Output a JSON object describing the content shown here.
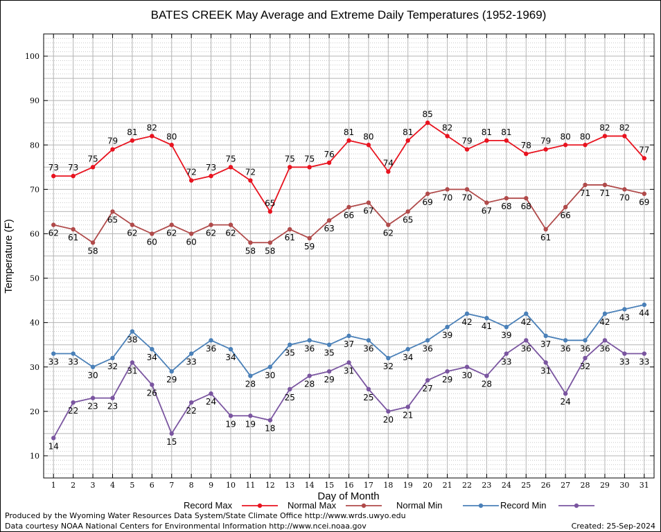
{
  "chart_data": {
    "type": "line",
    "title": "BATES CREEK May Average and Extreme Daily Temperatures (1952-1969)",
    "xlabel": "Day of Month",
    "ylabel": "Temperature (F)",
    "xlim": [
      0.5,
      31.5
    ],
    "ylim": [
      5,
      105
    ],
    "yticks": [
      10,
      20,
      30,
      40,
      50,
      60,
      70,
      80,
      90,
      100
    ],
    "x": [
      1,
      2,
      3,
      4,
      5,
      6,
      7,
      8,
      9,
      10,
      11,
      12,
      13,
      14,
      15,
      16,
      17,
      18,
      19,
      20,
      21,
      22,
      23,
      24,
      25,
      26,
      27,
      28,
      29,
      30,
      31
    ],
    "grid": true,
    "legend_position": "bottom",
    "series": [
      {
        "name": "Record Max",
        "color": "#e8131f",
        "values": [
          73,
          73,
          75,
          79,
          81,
          82,
          80,
          72,
          73,
          75,
          72,
          65,
          75,
          75,
          76,
          81,
          80,
          74,
          81,
          85,
          82,
          79,
          81,
          81,
          78,
          79,
          80,
          80,
          82,
          82,
          77
        ]
      },
      {
        "name": "Normal Max",
        "color": "#b04a4a",
        "values": [
          62,
          61,
          58,
          65,
          62,
          60,
          62,
          60,
          62,
          62,
          58,
          58,
          61,
          59,
          63,
          66,
          67,
          62,
          65,
          69,
          70,
          70,
          67,
          68,
          68,
          61,
          66,
          71,
          71,
          70,
          69
        ]
      },
      {
        "name": "Normal Min",
        "color": "#4a80b8",
        "values": [
          33,
          33,
          30,
          32,
          38,
          34,
          29,
          33,
          36,
          34,
          28,
          30,
          35,
          36,
          35,
          37,
          36,
          32,
          34,
          36,
          39,
          42,
          41,
          39,
          42,
          37,
          36,
          36,
          42,
          43,
          44
        ]
      },
      {
        "name": "Record Min",
        "color": "#7a55a0",
        "values": [
          14,
          22,
          23,
          23,
          31,
          26,
          15,
          22,
          24,
          19,
          19,
          18,
          25,
          28,
          29,
          31,
          25,
          20,
          21,
          27,
          29,
          30,
          28,
          33,
          36,
          31,
          24,
          32,
          36,
          33,
          33
        ]
      }
    ]
  },
  "footer": {
    "produced_by": "Produced by the Wyoming Water Resources Data System/State Climate Office http://www.wrds.uwyo.edu",
    "courtesy": "Data courtesy NOAA National Centers for Environmental Information http://www.ncei.noaa.gov",
    "created": "Created:  25-Sep-2024"
  }
}
